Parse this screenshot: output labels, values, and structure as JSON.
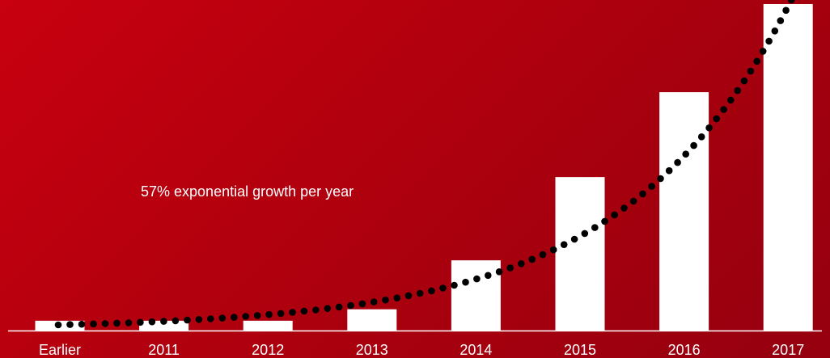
{
  "page": {
    "title_partial": "",
    "background_colors": [
      "#c8000f",
      "#95000f"
    ]
  },
  "chart_data": {
    "type": "bar",
    "title": "",
    "xlabel": "",
    "ylabel": "",
    "categories": [
      "Earlier",
      "2011",
      "2012",
      "2013",
      "2014",
      "2015",
      "2016",
      "2017"
    ],
    "values": [
      3,
      3,
      3,
      6.5,
      21.5,
      47,
      73,
      100
    ],
    "ylim": [
      0,
      100
    ],
    "bar_color": "#ffffff",
    "trendline": {
      "style": "dotted",
      "color": "#000000",
      "label": "57% exponential growth per year",
      "growth_rate": 0.57
    },
    "grid": false,
    "legend": "none",
    "axis_color": "#ffffff"
  }
}
